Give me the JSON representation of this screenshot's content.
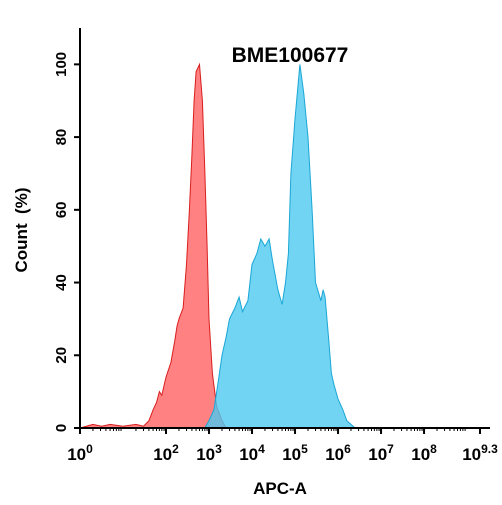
{
  "chart_data": {
    "type": "area",
    "title": "BME100677",
    "xlabel": "APC-A",
    "ylabel": "Count  (%)",
    "x_scale": "log10",
    "xlim": [
      1,
      2000000000
    ],
    "ylim": [
      0,
      110
    ],
    "x_ticks": [
      {
        "base": "10",
        "exp": "0",
        "value": 1
      },
      {
        "base": "10",
        "exp": "2",
        "value": 100
      },
      {
        "base": "10",
        "exp": "3",
        "value": 1000
      },
      {
        "base": "10",
        "exp": "4",
        "value": 10000
      },
      {
        "base": "10",
        "exp": "5",
        "value": 100000
      },
      {
        "base": "10",
        "exp": "6",
        "value": 1000000
      },
      {
        "base": "10",
        "exp": "7",
        "value": 10000000
      },
      {
        "base": "10",
        "exp": "8",
        "value": 100000000
      },
      {
        "base": "10",
        "exp": "9.3",
        "value": 2000000000
      }
    ],
    "y_ticks": [
      0,
      20,
      40,
      60,
      80,
      100
    ],
    "grid": false,
    "series": [
      {
        "color": "#ff6b6b",
        "stroke": "#d81e1e",
        "opacity": 0.85,
        "x": [
          1,
          2,
          3.2,
          5,
          10,
          20,
          30,
          40,
          50,
          60,
          70,
          80,
          100,
          130,
          160,
          180,
          200,
          250,
          300,
          350,
          400,
          450,
          500,
          600,
          700,
          800,
          900,
          1000,
          1200,
          1500,
          2000,
          2500
        ],
        "y": [
          0,
          1,
          0.5,
          1,
          0.5,
          1,
          0.5,
          2,
          5,
          7,
          10,
          9,
          14,
          18,
          24,
          28,
          30,
          33,
          45,
          60,
          75,
          90,
          98,
          100,
          90,
          70,
          50,
          30,
          15,
          6,
          2,
          0
        ]
      },
      {
        "color": "#4dc9f0",
        "stroke": "#1aa6d6",
        "opacity": 0.8,
        "x": [
          800,
          1000,
          1300,
          1600,
          2000,
          2500,
          3000,
          4000,
          5000,
          6000,
          8000,
          10000,
          13000,
          16000,
          20000,
          25000,
          30000,
          40000,
          50000,
          60000,
          70000,
          80000,
          100000,
          130000,
          160000,
          200000,
          250000,
          300000,
          400000,
          450000,
          500000,
          600000,
          700000,
          800000,
          1000000,
          1300000,
          1600000,
          2000000,
          2500000
        ],
        "y": [
          0,
          2,
          5,
          12,
          20,
          25,
          30,
          33,
          36,
          32,
          35,
          45,
          48,
          52,
          50,
          52,
          46,
          38,
          34,
          40,
          48,
          70,
          85,
          100,
          92,
          80,
          60,
          40,
          35,
          38,
          36,
          25,
          15,
          12,
          8,
          5,
          2,
          1,
          0
        ]
      }
    ]
  }
}
